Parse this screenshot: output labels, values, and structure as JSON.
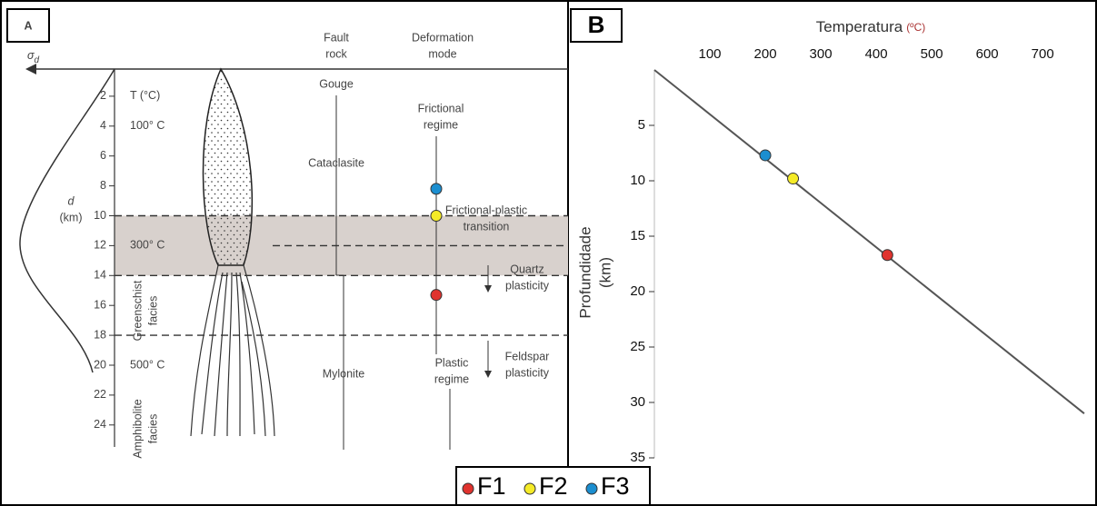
{
  "chart_data": [
    {
      "type": "profile",
      "label": "A",
      "sigma_label": {
        "symbol": "σ",
        "subscript": "d"
      },
      "t_label": "T (°C)",
      "depth_label": [
        "d",
        "(km)"
      ],
      "ylim": [
        0,
        25.6
      ],
      "yticks": [
        2,
        4,
        6,
        8,
        10,
        12,
        14,
        16,
        18,
        20,
        22,
        24
      ],
      "temperature_labels": [
        {
          "label": "100° C",
          "depth": 4
        },
        {
          "label": "300° C",
          "depth": 12
        },
        {
          "label": "500° C",
          "depth": 20
        }
      ],
      "facies": [
        [
          "Greenschist",
          "facies"
        ],
        [
          "Amphibolite",
          "facies"
        ]
      ],
      "column_headers": [
        [
          "Fault",
          "rock"
        ],
        [
          "Deformation",
          "mode"
        ]
      ],
      "fault_rocks": [
        "Gouge",
        "Cataclasite",
        "Mylonite"
      ],
      "deformation_modes": [
        [
          "Frictional",
          "regime"
        ],
        [
          "Frictional-plastic",
          "transition"
        ],
        [
          "Quartz",
          "plasticity"
        ],
        [
          "Plastic",
          "regime"
        ],
        [
          "Feldspar",
          "plasticity"
        ]
      ],
      "shaded_band": [
        10,
        14
      ],
      "dashed_lines": [
        10,
        12,
        14,
        18
      ],
      "series": [
        {
          "color": "#e0332e",
          "values": [
            15.3
          ]
        },
        {
          "color": "#f5eb27",
          "values": [
            10
          ]
        },
        {
          "color": "#1b8ed0",
          "values": [
            8.2
          ]
        }
      ]
    },
    {
      "type": "scatter",
      "label": "B",
      "x_label": "Temperatura",
      "x_unit": "(ºC)",
      "y_label": [
        "Profundidade",
        "(km)"
      ],
      "xlim": [
        0,
        780
      ],
      "xticks": [
        100,
        200,
        300,
        400,
        500,
        600,
        700
      ],
      "ylim": [
        0,
        35
      ],
      "yticks": [
        5,
        10,
        15,
        20,
        25,
        30,
        35
      ],
      "y_inverted": true,
      "trend_line": {
        "color": "#555555",
        "x": [
          0,
          775
        ],
        "values": [
          0,
          31
        ]
      },
      "series": [
        {
          "name": "F1",
          "color": "#e0332e",
          "x": [
            420
          ],
          "values": [
            16.7
          ]
        },
        {
          "name": "F2",
          "color": "#f5eb27",
          "x": [
            250
          ],
          "values": [
            9.8
          ]
        },
        {
          "name": "F3",
          "color": "#1b8ed0",
          "x": [
            200
          ],
          "values": [
            7.7
          ]
        }
      ]
    }
  ]
}
